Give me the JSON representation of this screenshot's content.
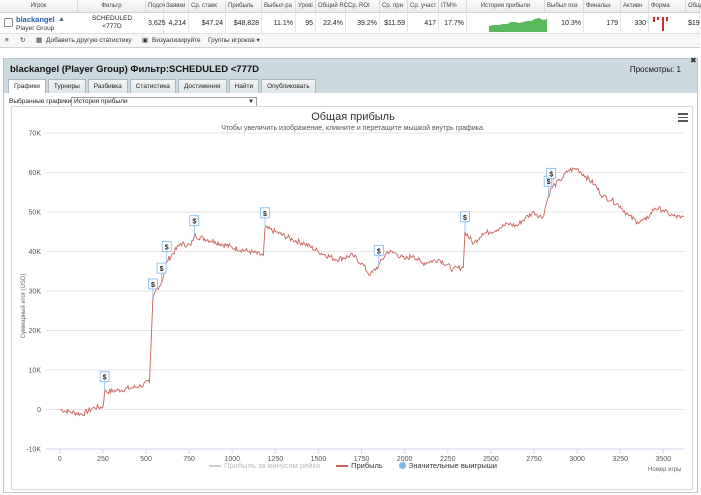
{
  "grid": {
    "headers": [
      "Игрок",
      "Фильтр",
      "Подсч",
      "Заявки",
      "Ср. ставк",
      "Прибыль",
      "Выбыл ра",
      "Урові",
      "Общий RC",
      "Ср. ROI",
      "Ср. при",
      "Ср. участ",
      "ITM%",
      "История прибыли",
      "Выбыл поз",
      "Финальн",
      "Активн",
      "Форма",
      "Общ"
    ],
    "player_name": "blackangel",
    "player_group": "Player Group",
    "filter_line1": "SCHEDULED",
    "filter_line2": "<777D",
    "values": [
      "3,625",
      "4,214",
      "$47.24",
      "$48,828",
      "11.1%",
      "95",
      "22.4%",
      "39.2%",
      "$11.59",
      "417",
      "17.7%",
      "10.3%",
      "179",
      "330",
      "$19"
    ],
    "toolbar": {
      "add_stat": "Добавить другую статистику",
      "visualize": "Визуализируйте",
      "groups": "Группы игроков"
    },
    "accent_green": "#5cb85c",
    "accent_red": "#c9302c"
  },
  "panel": {
    "title": "blackangel (Player Group) Фильтр:SCHEDULED <777D",
    "views": "Просмотры: 1",
    "tabs": [
      "Графики",
      "Турниры",
      "Разбивка",
      "Статистика",
      "Достижения",
      "Найти",
      "Опубликовать"
    ],
    "active_tab": 0,
    "select_label": "Выбранные графики:",
    "select_value": "История прибыли"
  },
  "chart_data": {
    "type": "line",
    "title": "Общая прибыль",
    "subtitle": "Чтобы увеличить изображение, кликните и перетащите мышкой внутрь графика.",
    "ylabel": "Суммарный итог (USD)",
    "xlabel": "Номер игры",
    "xlim": [
      -80,
      3620
    ],
    "ylim": [
      -10000,
      70000
    ],
    "x_ticks": [
      "0",
      "250",
      "500",
      "750",
      "1000",
      "1250",
      "1500",
      "1750",
      "2000",
      "2250",
      "2500",
      "2750",
      "3000",
      "3250",
      "3500"
    ],
    "y_ticks": [
      "-10K",
      "0",
      "10K",
      "20K",
      "30K",
      "40K",
      "50K",
      "60K",
      "70K"
    ],
    "grid": true,
    "line_color": "#c8625d",
    "series": [
      {
        "name": "Прибыль",
        "x": [
          0,
          60,
          130,
          200,
          250,
          260,
          330,
          420,
          470,
          520,
          540,
          560,
          590,
          620,
          700,
          760,
          780,
          900,
          1000,
          1100,
          1180,
          1190,
          1250,
          1350,
          1420,
          1500,
          1600,
          1700,
          1750,
          1800,
          1850,
          1900,
          1950,
          2000,
          2050,
          2100,
          2200,
          2280,
          2340,
          2350,
          2400,
          2450,
          2500,
          2550,
          2600,
          2650,
          2700,
          2750,
          2800,
          2820,
          2835,
          2850,
          2900,
          2950,
          3000,
          3050,
          3100,
          3150,
          3200,
          3250,
          3300,
          3350,
          3400,
          3450,
          3500,
          3530,
          3560,
          3600,
          3620
        ],
        "y": [
          0,
          -600,
          -1200,
          500,
          600,
          4500,
          4800,
          5500,
          6000,
          7000,
          28000,
          30500,
          32000,
          37500,
          42000,
          41500,
          44000,
          42500,
          41000,
          40000,
          39000,
          46000,
          45000,
          43000,
          42000,
          40000,
          38000,
          39000,
          37000,
          34000,
          36500,
          40000,
          39500,
          38000,
          39000,
          37000,
          38000,
          35500,
          36000,
          45000,
          42000,
          44500,
          45000,
          46000,
          47000,
          46500,
          48500,
          50000,
          48500,
          52000,
          54000,
          56000,
          58000,
          60500,
          61000,
          59000,
          57000,
          54000,
          53000,
          51500,
          49000,
          47500,
          48000,
          51000,
          50500,
          49500,
          49000,
          48500,
          48800
        ]
      }
    ],
    "markers": [
      {
        "x": 260,
        "y": 4500
      },
      {
        "x": 540,
        "y": 28000
      },
      {
        "x": 590,
        "y": 32000
      },
      {
        "x": 620,
        "y": 37500
      },
      {
        "x": 780,
        "y": 44000
      },
      {
        "x": 1190,
        "y": 46000
      },
      {
        "x": 1850,
        "y": 36500
      },
      {
        "x": 2350,
        "y": 45000
      },
      {
        "x": 2835,
        "y": 54000
      },
      {
        "x": 2850,
        "y": 56000
      }
    ],
    "marker_label": "$",
    "legend": [
      {
        "label": "Прибыль за минусом рейка",
        "color": "#cfcfcf",
        "kind": "line"
      },
      {
        "label": "Прибыль",
        "color": "#c8625d",
        "kind": "line"
      },
      {
        "label": "Значительные выигрыши",
        "color": "#7cb5ec",
        "kind": "dot"
      }
    ],
    "legend_placement": "bottom"
  }
}
